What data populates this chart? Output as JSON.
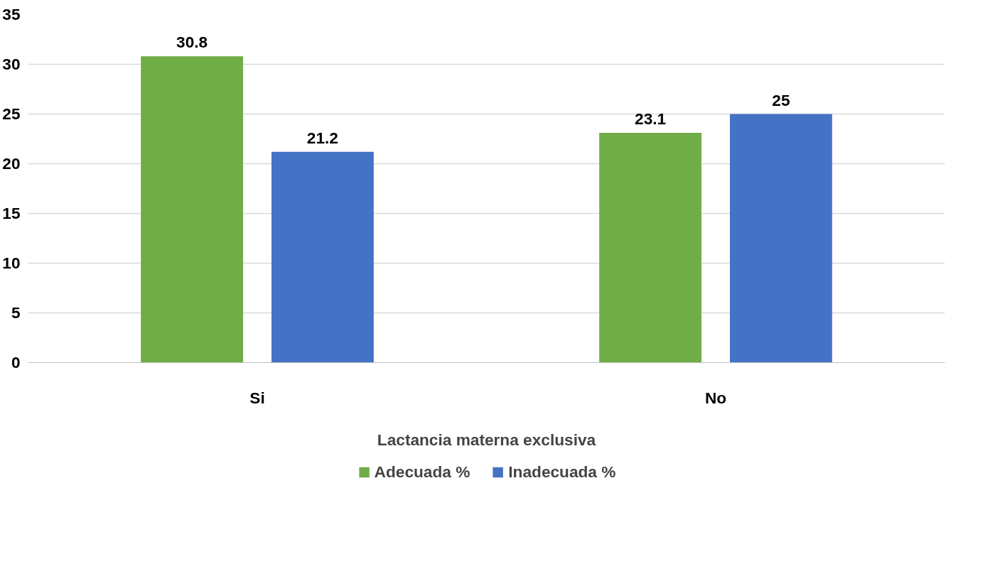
{
  "chart_data": {
    "type": "bar",
    "xlabel": "Lactancia materna exclusiva",
    "categories": [
      "Si",
      "No"
    ],
    "series": [
      {
        "name": "Adecuada %",
        "color": "#70ad47",
        "values": [
          30.8,
          23.1
        ]
      },
      {
        "name": "Inadecuada %",
        "color": "#4472c4",
        "values": [
          21.2,
          25
        ]
      }
    ],
    "ylim": [
      0,
      35
    ],
    "yticks": [
      0,
      5,
      10,
      15,
      20,
      25,
      30,
      35
    ],
    "grid": "y",
    "data_labels": true,
    "legend": "bottom"
  }
}
